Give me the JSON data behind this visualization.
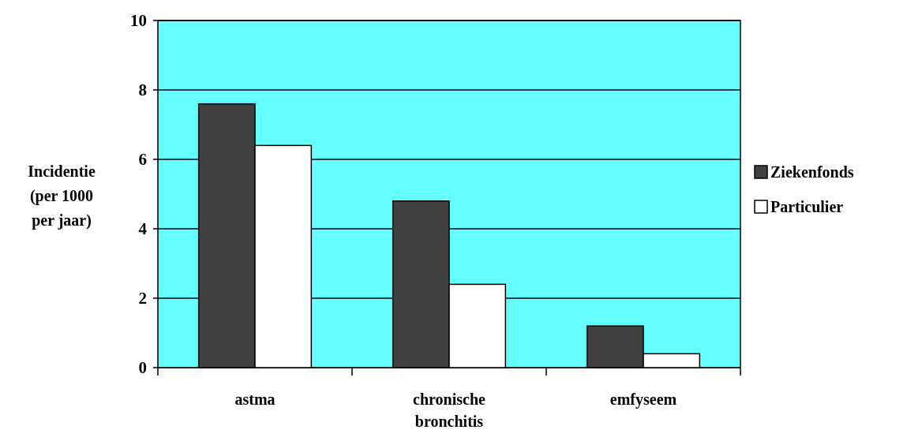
{
  "chart_data": {
    "type": "bar",
    "ylabel": "Incidentie\n(per 1000\nper jaar)",
    "categories": [
      "astma",
      "chronische bronchitis",
      "emfyseem"
    ],
    "series": [
      {
        "name": "Ziekenfonds",
        "color": "#404040",
        "values": [
          7.6,
          4.8,
          1.2
        ]
      },
      {
        "name": "Particulier",
        "color": "#ffffff",
        "values": [
          6.4,
          2.4,
          0.4
        ]
      }
    ],
    "ylim": [
      0,
      10
    ],
    "yticks": [
      0,
      2,
      4,
      6,
      8,
      10
    ],
    "grid": "y",
    "legend": "right"
  }
}
